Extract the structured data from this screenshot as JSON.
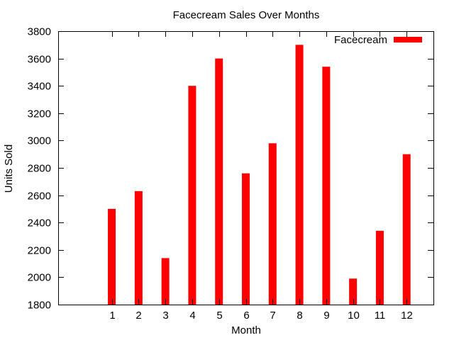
{
  "chart_data": {
    "type": "bar",
    "title": "Facecream Sales Over Months",
    "xlabel": "Month",
    "ylabel": "Units Sold",
    "categories": [
      "1",
      "2",
      "3",
      "4",
      "5",
      "6",
      "7",
      "8",
      "9",
      "10",
      "11",
      "12"
    ],
    "series": [
      {
        "name": "Facecream",
        "color": "#ff0000",
        "values": [
          2500,
          2630,
          2140,
          3400,
          3600,
          2760,
          2980,
          3700,
          3540,
          1990,
          2340,
          2900
        ]
      }
    ],
    "xlim": [
      -1,
      13
    ],
    "ylim": [
      1800,
      3800
    ],
    "yticks": [
      1800,
      2000,
      2200,
      2400,
      2600,
      2800,
      3000,
      3200,
      3400,
      3600,
      3800
    ],
    "grid": false,
    "legend": "top-right"
  }
}
